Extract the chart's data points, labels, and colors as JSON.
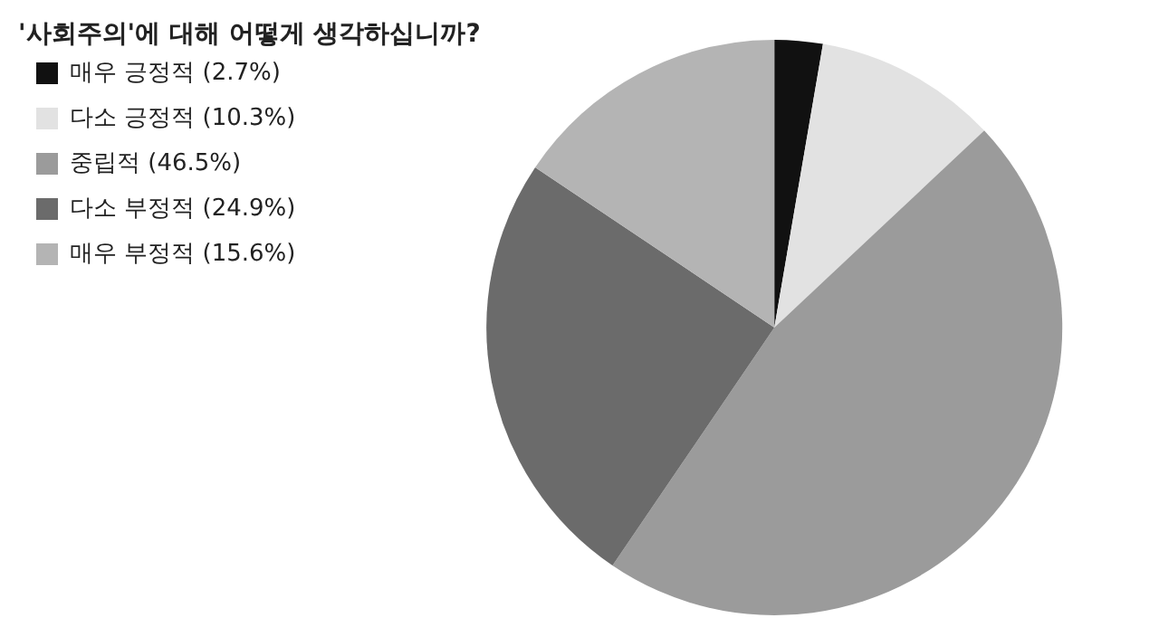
{
  "chart_data": {
    "type": "pie",
    "title": "'사회주의'에 대해 어떻게 생각하십니까?",
    "categories": [
      "매우 긍정적 (2.7%)",
      "다소 긍정적 (10.3%)",
      "중립적 (46.5%)",
      "다소 부정적 (24.9%)",
      "매우 부정적 (15.6%)"
    ],
    "values": [
      2.7,
      10.3,
      46.5,
      24.9,
      15.6
    ],
    "colors": [
      "#111111",
      "#e2e2e2",
      "#9b9b9b",
      "#6b6b6b",
      "#b4b4b4"
    ],
    "legend": "left"
  }
}
